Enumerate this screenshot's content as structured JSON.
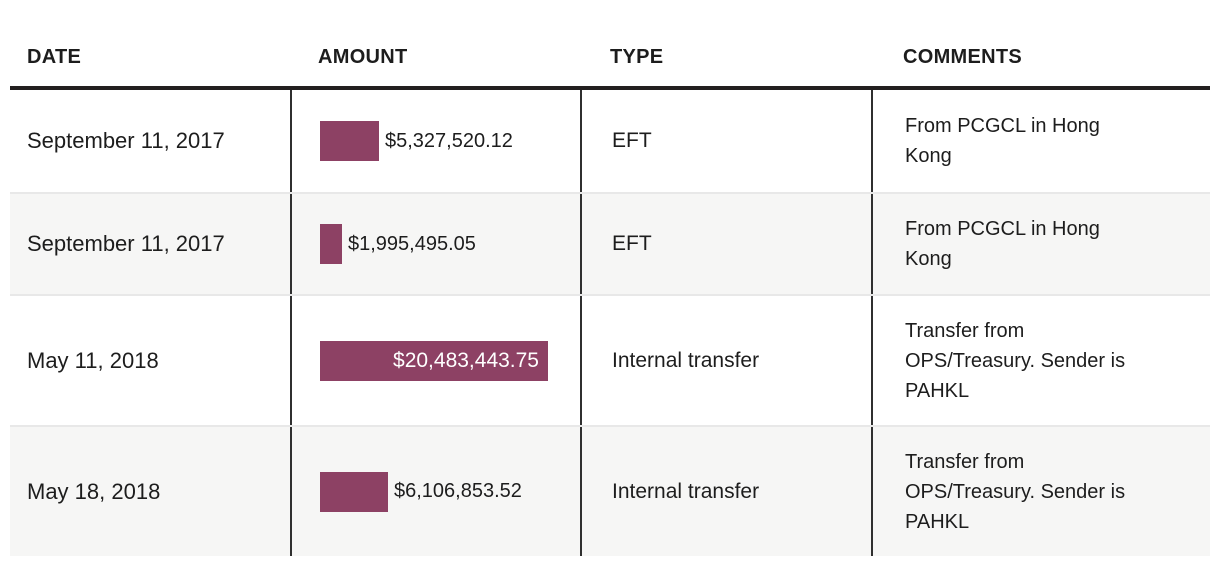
{
  "table": {
    "columns": [
      {
        "label": "DATE"
      },
      {
        "label": "AMOUNT"
      },
      {
        "label": "TYPE"
      },
      {
        "label": "COMMENTS"
      }
    ],
    "rows": [
      {
        "date": "September 11, 2017",
        "amount_display": "$5,327,520.12",
        "type": "EFT",
        "comments": "From PCGCL in Hong Kong"
      },
      {
        "date": "September 11, 2017",
        "amount_display": "$1,995,495.05",
        "type": "EFT",
        "comments": "From PCGCL in Hong Kong"
      },
      {
        "date": "May 11, 2018",
        "amount_display": "$20,483,443.75",
        "type": "Internal transfer",
        "comments": "Transfer from OPS/Treasury. Sender is PAHKL"
      },
      {
        "date": "May 18, 2018",
        "amount_display": "$6,106,853.52",
        "type": "Internal transfer",
        "comments": "Transfer from OPS/Treasury. Sender is PAHKL"
      }
    ]
  },
  "chart_data": {
    "type": "table",
    "columns": [
      "DATE",
      "AMOUNT",
      "TYPE",
      "COMMENTS"
    ],
    "rows": [
      [
        "September 11, 2017",
        "$5,327,520.12",
        "EFT",
        "From PCGCL in Hong Kong"
      ],
      [
        "September 11, 2017",
        "$1,995,495.05",
        "EFT",
        "From PCGCL in Hong Kong"
      ],
      [
        "May 11, 2018",
        "$20,483,443.75",
        "Internal transfer",
        "Transfer from OPS/Treasury. Sender is PAHKL"
      ],
      [
        "May 18, 2018",
        "$6,106,853.52",
        "Internal transfer",
        "Transfer from OPS/Treasury. Sender is PAHKL"
      ]
    ],
    "bar_column": "AMOUNT",
    "values": [
      5327520.12,
      1995495.05,
      20483443.75,
      6106853.52
    ],
    "max_value": 20483443.75,
    "bar_color": "#8d4164"
  },
  "colors": {
    "bar": "#8d4164",
    "bar_label_inside": "#ffffff",
    "header_rule": "#231f20",
    "column_rule": "#2f2f2f",
    "row_alt_bg": "#f6f6f5",
    "row_divider": "#e8e8e8",
    "text": "#1d1d1d"
  }
}
